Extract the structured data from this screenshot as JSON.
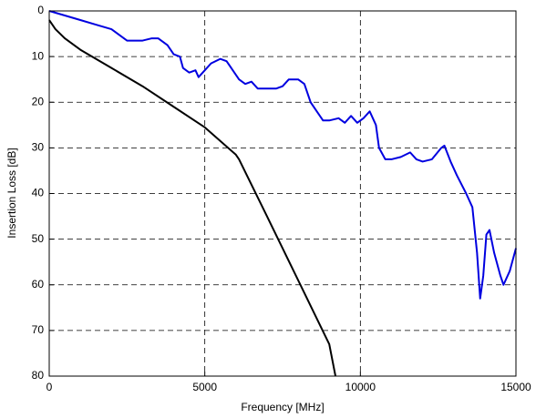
{
  "chart_data": {
    "type": "line",
    "xlabel": "Frequency [MHz]",
    "ylabel": "Insertion Loss [dB]",
    "xlim": [
      0,
      15000
    ],
    "xticks": [
      0,
      5000,
      10000,
      15000
    ],
    "ylim": [
      0,
      80
    ],
    "yticks": [
      0,
      10,
      20,
      30,
      40,
      50,
      60,
      70,
      80
    ],
    "y_inverted": true,
    "grid": true,
    "series": [
      {
        "color": "#0000e0",
        "x": [
          0,
          500,
          1000,
          1500,
          2000,
          2200,
          2500,
          3000,
          3300,
          3500,
          3800,
          4000,
          4200,
          4300,
          4500,
          4700,
          4800,
          5000,
          5200,
          5500,
          5700,
          5900,
          6100,
          6300,
          6500,
          6700,
          7000,
          7300,
          7500,
          7700,
          8000,
          8200,
          8400,
          8600,
          8800,
          9000,
          9300,
          9500,
          9700,
          9900,
          10100,
          10300,
          10500,
          10600,
          10800,
          11000,
          11300,
          11600,
          11800,
          12000,
          12300,
          12600,
          12700,
          12900,
          13100,
          13400,
          13600,
          13750,
          13850,
          13950,
          14050,
          14150,
          14300,
          14500,
          14600,
          14800,
          15000
        ],
        "values": [
          0,
          1,
          2,
          3,
          4,
          5,
          6.5,
          6.5,
          6,
          6,
          7.5,
          9.5,
          10,
          12.5,
          13.5,
          13,
          14.5,
          13,
          11.5,
          10.5,
          11,
          13,
          15,
          16,
          15.5,
          17,
          17,
          17,
          16.5,
          15,
          15,
          16,
          20,
          22,
          24,
          24,
          23.5,
          24.5,
          23,
          24.5,
          23.5,
          22,
          25,
          30,
          32.5,
          32.5,
          32,
          31,
          32.5,
          33,
          32.5,
          30,
          29.5,
          33,
          36,
          40,
          43,
          53,
          63,
          58,
          49,
          48,
          53,
          58,
          60,
          57,
          52
        ]
      },
      {
        "color": "#000000",
        "x": [
          0,
          200,
          500,
          1000,
          2000,
          3000,
          4000,
          5000,
          6000,
          6100,
          7000,
          8000,
          9000,
          9200
        ],
        "values": [
          2,
          4,
          6,
          8.5,
          12.5,
          16.5,
          21,
          25.5,
          31.5,
          32.5,
          45,
          59,
          73,
          80
        ]
      }
    ]
  }
}
